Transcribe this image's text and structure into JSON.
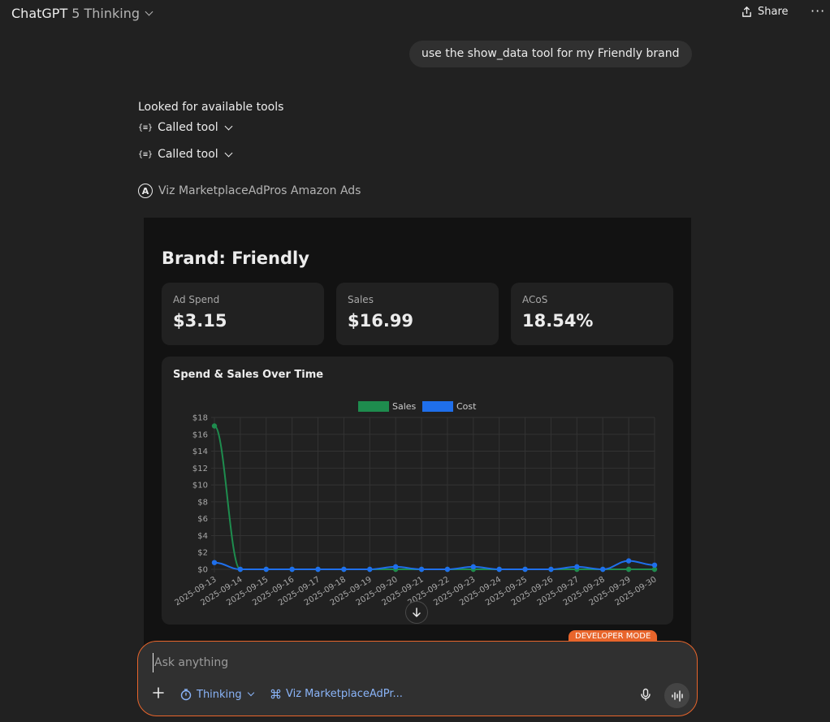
{
  "header": {
    "app_name": "ChatGPT",
    "model_name": "5 Thinking",
    "share_label": "Share",
    "more_label": "···"
  },
  "conversation": {
    "user_message": "use the show_data tool for my Friendly brand",
    "status_text": "Looked for available tools",
    "tool_calls": [
      "Called tool",
      "Called tool"
    ],
    "tool_icon": "{≡}",
    "app_source_letter": "A",
    "app_source": "Viz MarketplaceAdPros Amazon Ads"
  },
  "widget": {
    "brand_title": "Brand: Friendly",
    "kpis": [
      {
        "label": "Ad Spend",
        "value": "$3.15"
      },
      {
        "label": "Sales",
        "value": "$16.99"
      },
      {
        "label": "ACoS",
        "value": "18.54%"
      }
    ]
  },
  "chart_data": {
    "type": "line",
    "title": "Spend & Sales Over Time",
    "x": [
      "2025-09-13",
      "2025-09-14",
      "2025-09-15",
      "2025-09-16",
      "2025-09-17",
      "2025-09-18",
      "2025-09-19",
      "2025-09-20",
      "2025-09-21",
      "2025-09-22",
      "2025-09-23",
      "2025-09-24",
      "2025-09-25",
      "2025-09-26",
      "2025-09-27",
      "2025-09-28",
      "2025-09-29",
      "2025-09-30"
    ],
    "series": [
      {
        "name": "Sales",
        "color": "#1e8c4e",
        "values": [
          16.99,
          0,
          0,
          0,
          0,
          0,
          0,
          0,
          0,
          0,
          0,
          0,
          0,
          0,
          0,
          0,
          0,
          0
        ]
      },
      {
        "name": "Cost",
        "color": "#1f6feb",
        "values": [
          0.8,
          0,
          0,
          0,
          0,
          0,
          0,
          0.3,
          0,
          0,
          0.3,
          0,
          0,
          0,
          0.3,
          0,
          1.0,
          0.5
        ]
      }
    ],
    "ylim": [
      0,
      18
    ],
    "yticks": [
      "$0",
      "$2",
      "$4",
      "$6",
      "$8",
      "$10",
      "$12",
      "$14",
      "$16",
      "$18"
    ],
    "grid": true,
    "legend": "top-center"
  },
  "composer": {
    "placeholder": "Ask anything",
    "thinking_label": "Thinking",
    "connector_label": "Viz MarketplaceAdPr...",
    "dev_mode_label": "DEVELOPER MODE"
  }
}
